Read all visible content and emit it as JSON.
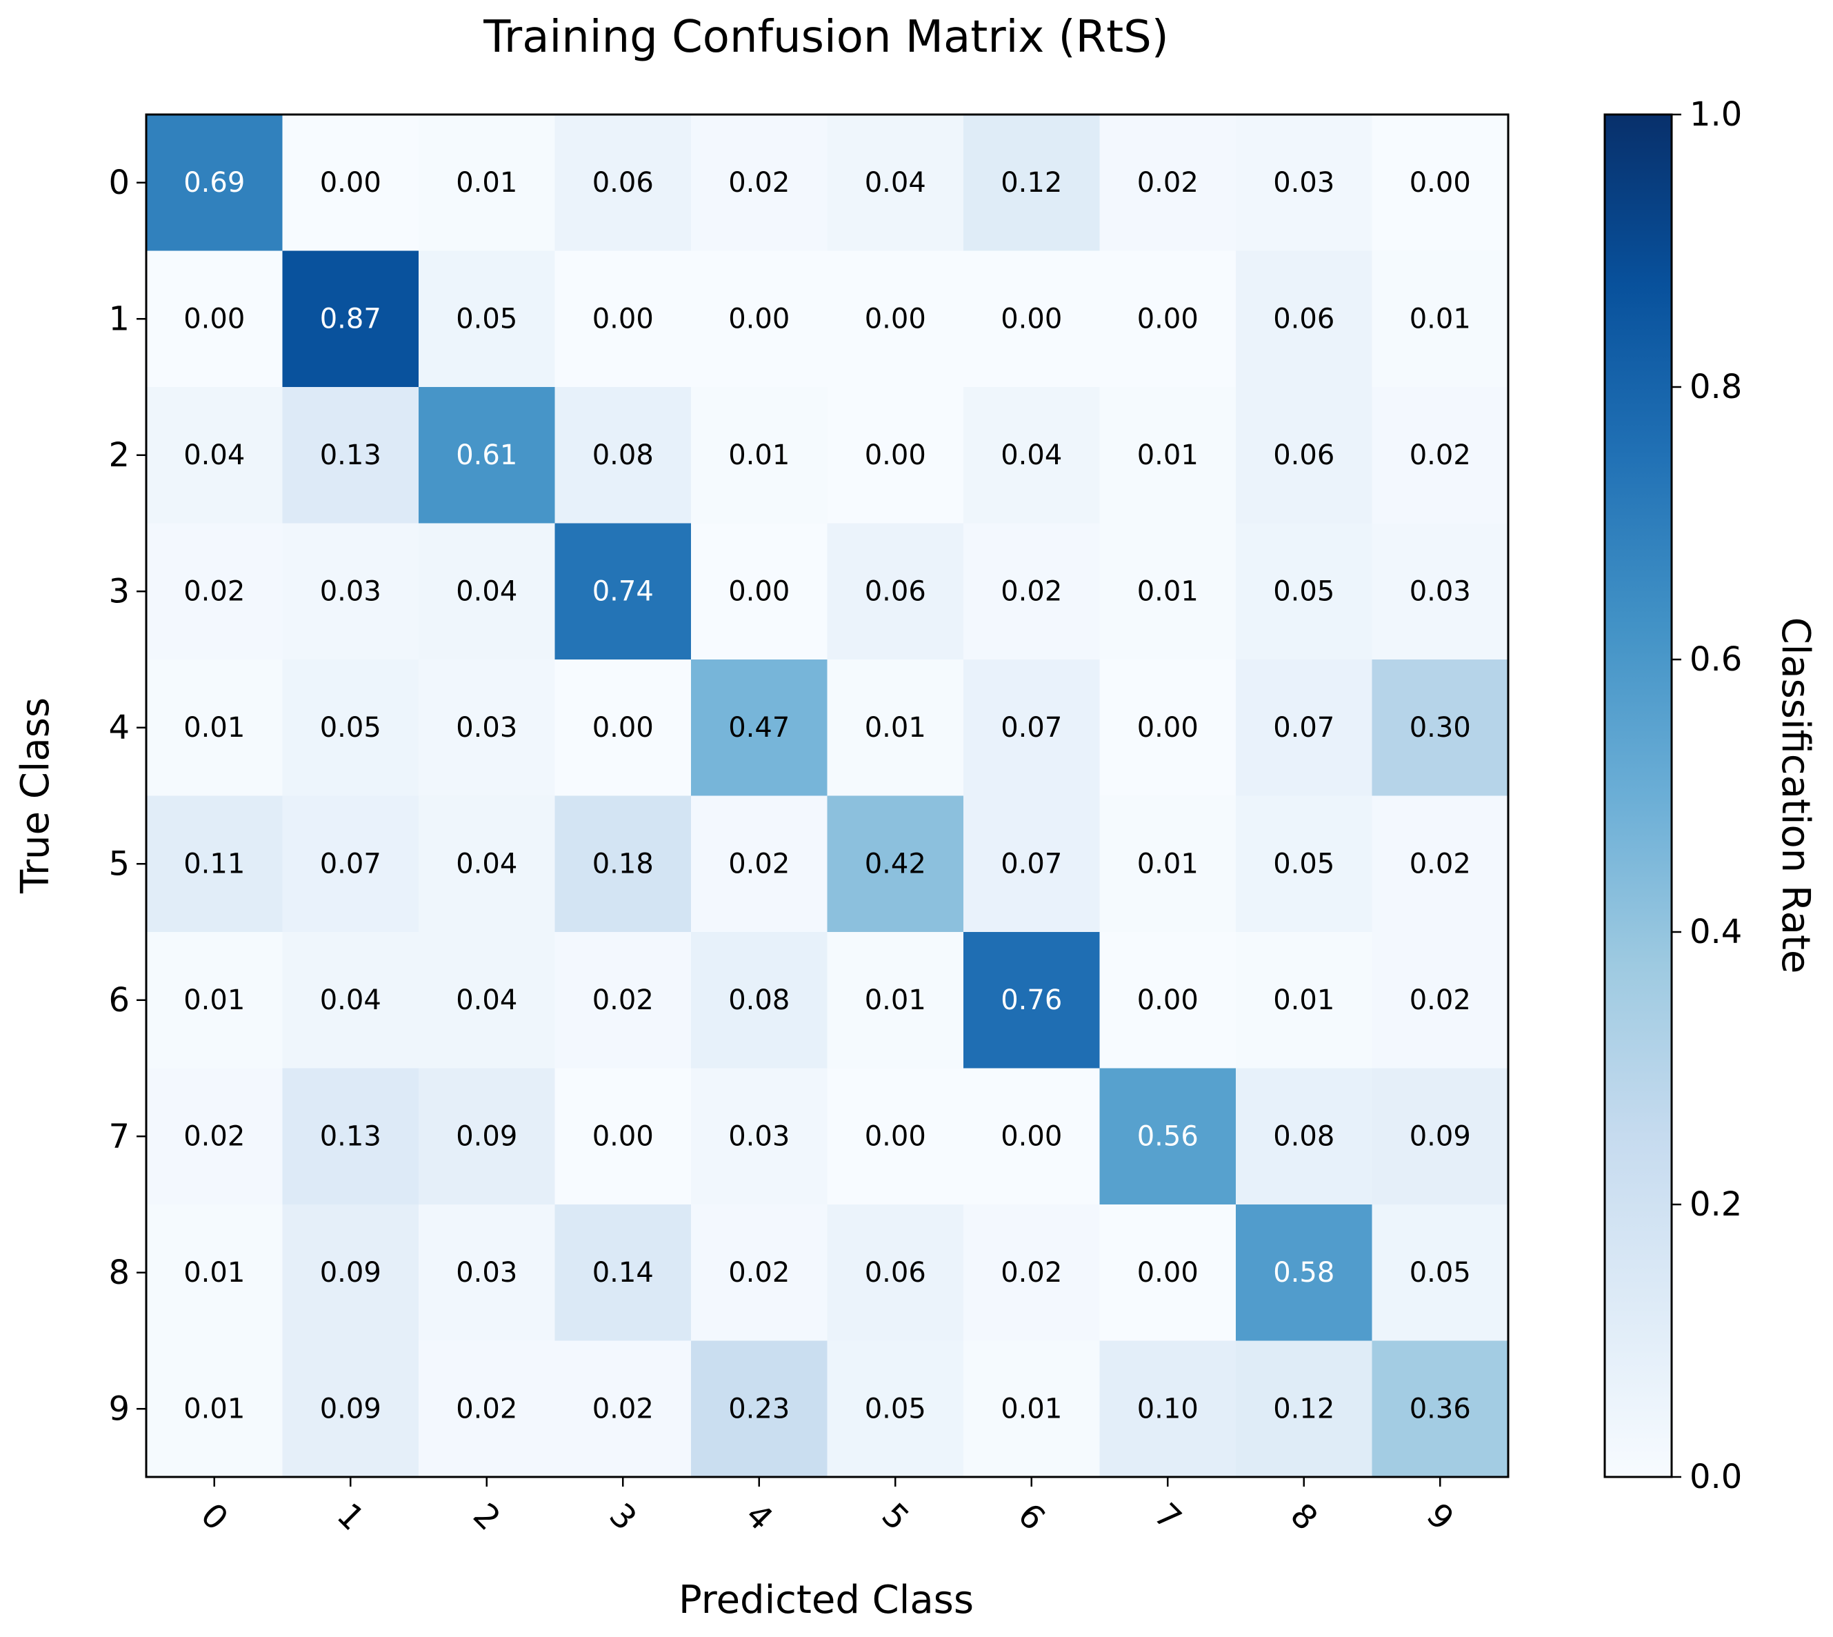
{
  "chart_data": {
    "type": "heatmap",
    "title": "Training Confusion Matrix (RtS)",
    "xlabel": "Predicted Class",
    "ylabel": "True Class",
    "x_categories": [
      "0",
      "1",
      "2",
      "3",
      "4",
      "5",
      "6",
      "7",
      "8",
      "9"
    ],
    "y_categories": [
      "0",
      "1",
      "2",
      "3",
      "4",
      "5",
      "6",
      "7",
      "8",
      "9"
    ],
    "values": [
      [
        0.69,
        0.0,
        0.01,
        0.06,
        0.02,
        0.04,
        0.12,
        0.02,
        0.03,
        0.0
      ],
      [
        0.0,
        0.87,
        0.05,
        0.0,
        0.0,
        0.0,
        0.0,
        0.0,
        0.06,
        0.01
      ],
      [
        0.04,
        0.13,
        0.61,
        0.08,
        0.01,
        0.0,
        0.04,
        0.01,
        0.06,
        0.02
      ],
      [
        0.02,
        0.03,
        0.04,
        0.74,
        0.0,
        0.06,
        0.02,
        0.01,
        0.05,
        0.03
      ],
      [
        0.01,
        0.05,
        0.03,
        0.0,
        0.47,
        0.01,
        0.07,
        0.0,
        0.07,
        0.3
      ],
      [
        0.11,
        0.07,
        0.04,
        0.18,
        0.02,
        0.42,
        0.07,
        0.01,
        0.05,
        0.02
      ],
      [
        0.01,
        0.04,
        0.04,
        0.02,
        0.08,
        0.01,
        0.76,
        0.0,
        0.01,
        0.02
      ],
      [
        0.02,
        0.13,
        0.09,
        0.0,
        0.03,
        0.0,
        0.0,
        0.56,
        0.08,
        0.09
      ],
      [
        0.01,
        0.09,
        0.03,
        0.14,
        0.02,
        0.06,
        0.02,
        0.0,
        0.58,
        0.05
      ],
      [
        0.01,
        0.09,
        0.02,
        0.02,
        0.23,
        0.05,
        0.01,
        0.1,
        0.12,
        0.36
      ]
    ],
    "value_format_decimals": 2,
    "colormap": "Blues",
    "colorbar": {
      "label": "Classification Rate",
      "range": [
        0.0,
        1.0
      ],
      "ticks": [
        "0.0",
        "0.2",
        "0.4",
        "0.6",
        "0.8",
        "1.0"
      ]
    },
    "grid": false
  }
}
